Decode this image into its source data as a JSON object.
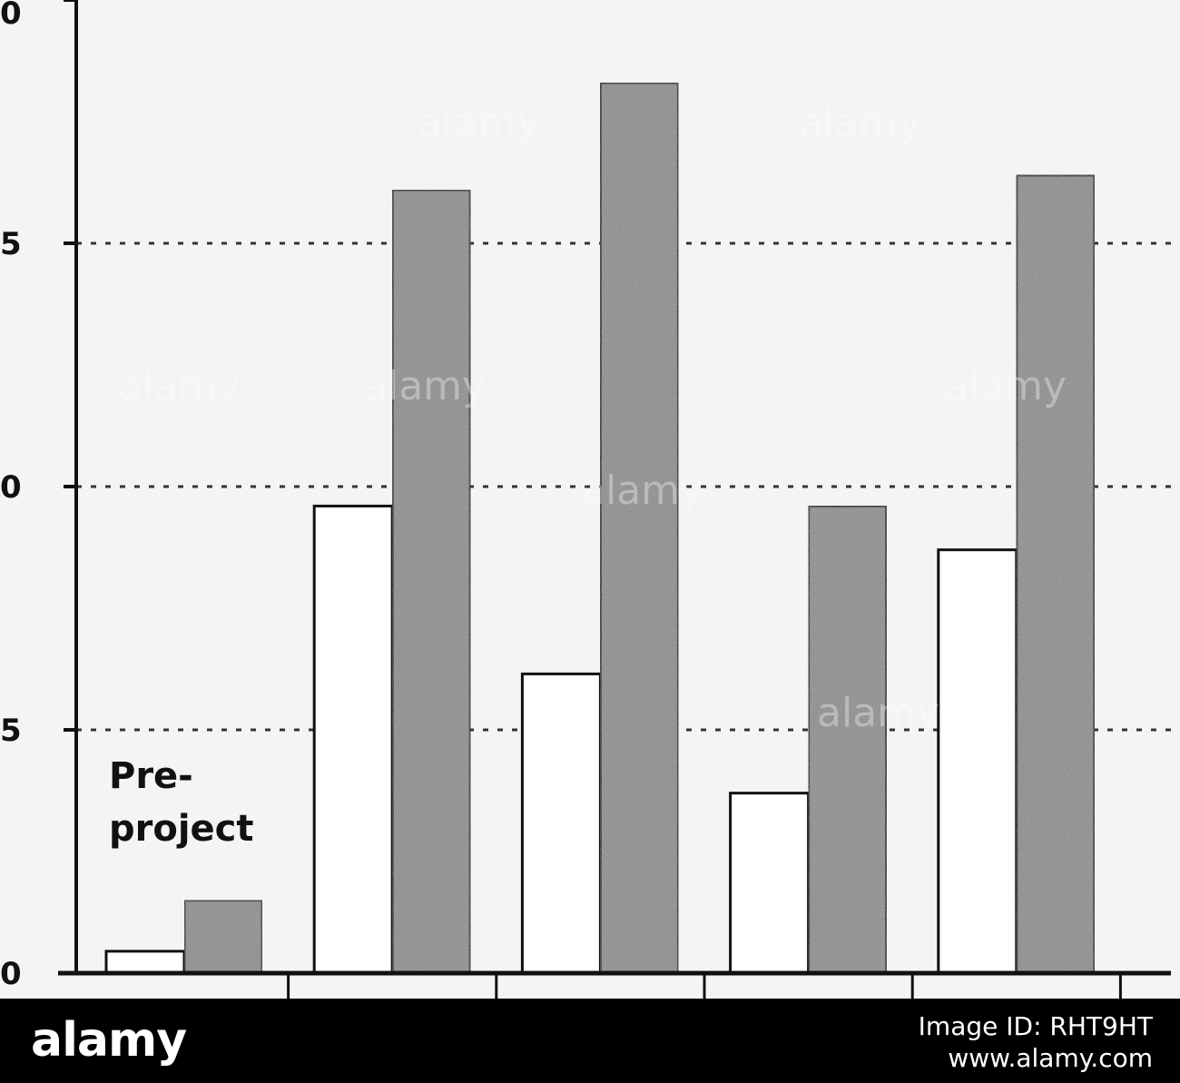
{
  "chart_data": {
    "type": "bar",
    "categories": [
      "",
      "",
      "",
      "",
      ""
    ],
    "series": [
      {
        "color": "#ffffff",
        "values": [
          0.9,
          19.2,
          12.3,
          7.4,
          17.4
        ]
      },
      {
        "color": "#8c8c8c",
        "values": [
          3.0,
          32.2,
          36.6,
          19.2,
          32.8
        ]
      }
    ],
    "y_ticks": [
      "0",
      "5",
      "0",
      "5",
      "0"
    ],
    "ylim": [
      0,
      40
    ],
    "grid": "dotted-horizontal",
    "annotation": "Pre-\nproject",
    "title": "",
    "xlabel": "",
    "ylabel": ""
  },
  "watermark": {
    "text": "alamy",
    "image_id": "Image ID: RHT9HT",
    "site": "www.alamy.com"
  }
}
